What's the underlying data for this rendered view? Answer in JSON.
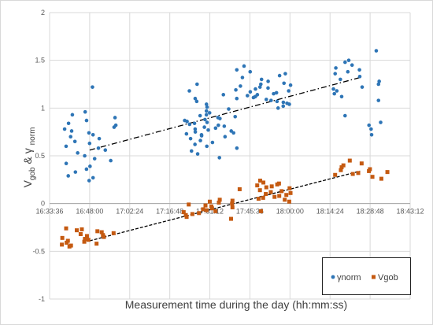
{
  "chart_data": {
    "type": "scatter",
    "title": "",
    "xlabel": "Measurement time during the day (hh:mm:ss)",
    "ylabel": {
      "prefix_main": "V",
      "prefix_sub": "gob",
      "joiner": " & γ ",
      "suffix_sub": "norm"
    },
    "ylim": [
      -1,
      2
    ],
    "yticks": [
      -1,
      -0.5,
      0,
      0.5,
      1,
      1.5,
      2
    ],
    "ytick_labels": [
      "-1",
      "-0.5",
      "0",
      "0.5",
      "1",
      "1.5",
      "2"
    ],
    "xlim": [
      "16:33:36",
      "18:43:12"
    ],
    "xticks": [
      "16:33:36",
      "16:48:00",
      "17:02:24",
      "17:16:48",
      "17:31:12",
      "17:45:36",
      "18:00:00",
      "18:14:24",
      "18:28:48",
      "18:43:12"
    ],
    "grid": true,
    "legend_position": "bottom-right",
    "colors": {
      "ynorm": "#2e75b6",
      "vgob": "#c55a11"
    },
    "series": [
      {
        "name": "γnorm",
        "marker": "circle",
        "clusters": [
          {
            "x": "16:48:00",
            "values": [
              0.24,
              0.27,
              0.29,
              0.33,
              0.36,
              0.39,
              0.42,
              0.45,
              0.47,
              0.5,
              0.53,
              0.56,
              0.58,
              0.6,
              0.63,
              0.65,
              0.68,
              0.7,
              0.72,
              0.74,
              0.76,
              0.78,
              0.8,
              0.82,
              0.84,
              0.87,
              0.9,
              0.93,
              0.96,
              1.22
            ]
          },
          {
            "x": "17:31:12",
            "values": [
              0.48,
              0.52,
              0.55,
              0.58,
              0.6,
              0.62,
              0.64,
              0.66,
              0.68,
              0.7,
              0.71,
              0.72,
              0.73,
              0.74,
              0.75,
              0.76,
              0.77,
              0.78,
              0.79,
              0.8,
              0.81,
              0.82,
              0.83,
              0.84,
              0.85,
              0.86,
              0.87,
              0.88,
              0.89,
              0.9,
              0.91,
              0.92,
              0.93,
              0.95,
              0.97,
              0.99,
              1.01,
              1.04,
              1.07,
              1.1,
              1.14,
              1.18,
              1.25
            ]
          },
          {
            "x": "17:50:24",
            "values": [
              1.0,
              1.02,
              1.04,
              1.05,
              1.06,
              1.07,
              1.08,
              1.09,
              1.1,
              1.11,
              1.12,
              1.13,
              1.14,
              1.15,
              1.16,
              1.17,
              1.18,
              1.19,
              1.2,
              1.21,
              1.22,
              1.23,
              1.24,
              1.25,
              1.26,
              1.28,
              1.3,
              1.32,
              1.34,
              1.36,
              1.38,
              1.4,
              1.44
            ]
          },
          {
            "x": "18:25:12",
            "values": [
              0.72,
              0.78,
              0.82,
              0.85,
              0.92,
              1.08,
              1.12,
              1.15,
              1.18,
              1.2,
              1.22,
              1.25,
              1.28,
              1.3,
              1.33,
              1.36,
              1.38,
              1.4,
              1.42,
              1.45,
              1.48,
              1.5,
              1.6
            ]
          }
        ],
        "trendline": {
          "style": "dash-dot",
          "from": [
            "16:48:00",
            0.56
          ],
          "to": [
            "18:25:12",
            1.32
          ]
        }
      },
      {
        "name": "Vgob",
        "marker": "square",
        "clusters": [
          {
            "x": "16:48:00",
            "values": [
              -0.45,
              -0.44,
              -0.43,
              -0.42,
              -0.41,
              -0.4,
              -0.39,
              -0.38,
              -0.37,
              -0.36,
              -0.35,
              -0.34,
              -0.33,
              -0.32,
              -0.31,
              -0.3,
              -0.29,
              -0.28,
              -0.27,
              -0.26
            ]
          },
          {
            "x": "17:31:12",
            "values": [
              -0.16,
              -0.14,
              -0.12,
              -0.11,
              -0.1,
              -0.09,
              -0.08,
              -0.07,
              -0.06,
              -0.05,
              -0.04,
              -0.03,
              -0.02,
              -0.01,
              0.0,
              0.01,
              0.02,
              0.03,
              0.04
            ]
          },
          {
            "x": "17:50:24",
            "values": [
              -0.08,
              0.02,
              0.04,
              0.05,
              0.06,
              0.07,
              0.08,
              0.09,
              0.1,
              0.11,
              0.12,
              0.13,
              0.14,
              0.15,
              0.16,
              0.17,
              0.18,
              0.19,
              0.2,
              0.21,
              0.22,
              0.24
            ]
          },
          {
            "x": "18:25:12",
            "values": [
              0.26,
              0.28,
              0.3,
              0.31,
              0.32,
              0.33,
              0.34,
              0.35,
              0.36,
              0.38,
              0.4,
              0.42,
              0.45
            ]
          }
        ],
        "trendline": {
          "style": "dashed",
          "from": [
            "16:48:00",
            -0.39
          ],
          "to": [
            "18:25:12",
            0.34
          ]
        }
      }
    ]
  }
}
